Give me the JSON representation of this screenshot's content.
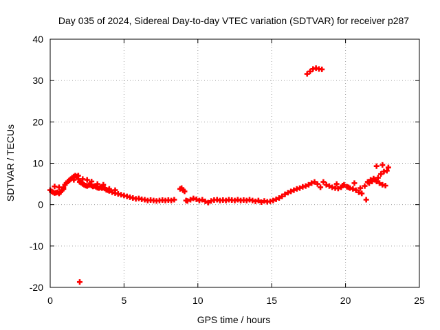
{
  "chart_data": {
    "type": "scatter",
    "title": "Day 035 of 2024, Sidereal Day-to-day VTEC variation (SDTVAR) for receiver p287",
    "xlabel": "GPS time / hours",
    "ylabel": "SDTVAR / TECUs",
    "xlim": [
      0,
      25
    ],
    "ylim": [
      -20,
      40
    ],
    "xticks": [
      0,
      5,
      10,
      15,
      20,
      25
    ],
    "yticks": [
      -20,
      -10,
      0,
      10,
      20,
      30,
      40
    ],
    "xtick_labels": [
      "0",
      "5",
      "10",
      "15",
      "20",
      "25"
    ],
    "ytick_labels": [
      "-20",
      "-10",
      "0",
      "10",
      "20",
      "30",
      "40"
    ],
    "grid": true,
    "marker": "+",
    "series": [
      {
        "name": "SDTVAR",
        "color": "#ff0000",
        "x": [
          0.0,
          0.1,
          0.2,
          0.3,
          0.4,
          0.5,
          0.6,
          0.7,
          0.8,
          0.9,
          1.0,
          1.1,
          1.2,
          1.3,
          1.4,
          1.5,
          1.6,
          1.7,
          1.8,
          1.9,
          2.0,
          2.1,
          2.2,
          2.3,
          2.4,
          2.5,
          2.6,
          2.7,
          2.8,
          2.9,
          3.0,
          3.1,
          3.2,
          3.3,
          3.4,
          3.5,
          3.6,
          3.7,
          3.8,
          3.9,
          4.0,
          4.2,
          4.4,
          4.6,
          4.8,
          5.0,
          5.2,
          5.4,
          5.6,
          5.8,
          6.0,
          6.2,
          6.4,
          6.6,
          6.8,
          7.0,
          7.2,
          7.4,
          7.6,
          7.8,
          8.0,
          8.2,
          8.4,
          8.8,
          8.9,
          9.0,
          9.1,
          9.2,
          9.3,
          9.5,
          9.7,
          9.9,
          10.1,
          10.3,
          10.5,
          10.7,
          10.9,
          11.1,
          11.3,
          11.5,
          11.7,
          11.9,
          12.1,
          12.3,
          12.5,
          12.7,
          12.9,
          13.1,
          13.3,
          13.5,
          13.7,
          13.9,
          14.1,
          14.3,
          14.5,
          14.7,
          14.9,
          15.1,
          15.3,
          15.5,
          15.7,
          15.9,
          16.1,
          16.3,
          16.5,
          16.7,
          16.9,
          17.1,
          17.3,
          17.5,
          17.7,
          17.9,
          18.1,
          18.3,
          18.5,
          18.7,
          18.9,
          19.1,
          19.3,
          19.5,
          19.7,
          19.9,
          20.1,
          20.3,
          20.5,
          20.7,
          20.9,
          21.1,
          21.3,
          21.5,
          21.7,
          21.9,
          22.1,
          22.3,
          22.5,
          22.7,
          17.4,
          17.6,
          17.8,
          18.0,
          18.2,
          18.4,
          2.0,
          21.4,
          21.6,
          21.8,
          22.0,
          22.2,
          22.4,
          22.6,
          22.8,
          0.3,
          0.6,
          0.9,
          3.2,
          3.6,
          4.0,
          4.4,
          19.4,
          19.8,
          20.2,
          20.6,
          21.0,
          22.1,
          22.5,
          22.9,
          1.6,
          1.9,
          2.2,
          2.5,
          2.8
        ],
        "y": [
          3.5,
          3.2,
          3.0,
          2.8,
          2.9,
          3.0,
          2.7,
          3.0,
          3.5,
          4.2,
          4.8,
          5.2,
          5.6,
          5.9,
          6.2,
          6.5,
          6.8,
          7.0,
          6.8,
          6.2,
          5.5,
          5.3,
          5.0,
          4.8,
          4.6,
          4.5,
          4.7,
          4.8,
          4.6,
          4.4,
          4.5,
          4.3,
          4.1,
          4.0,
          4.2,
          4.0,
          4.1,
          3.9,
          3.6,
          3.5,
          3.3,
          3.0,
          2.8,
          2.6,
          2.4,
          2.2,
          2.0,
          1.8,
          1.6,
          1.4,
          1.5,
          1.3,
          1.2,
          1.0,
          1.1,
          1.0,
          0.9,
          1.0,
          1.1,
          1.0,
          1.1,
          1.0,
          1.2,
          3.8,
          4.0,
          3.5,
          3.2,
          1.0,
          0.9,
          1.2,
          1.5,
          1.3,
          1.0,
          1.2,
          0.8,
          0.5,
          0.9,
          1.1,
          1.2,
          1.0,
          1.1,
          1.0,
          1.2,
          1.1,
          1.0,
          1.2,
          1.0,
          1.1,
          1.0,
          1.2,
          1.0,
          0.8,
          1.0,
          0.6,
          0.9,
          0.7,
          0.8,
          1.0,
          1.3,
          1.6,
          2.0,
          2.5,
          2.9,
          3.2,
          3.5,
          3.8,
          4.0,
          4.3,
          4.5,
          4.8,
          5.2,
          5.5,
          5.0,
          4.2,
          5.5,
          4.8,
          4.5,
          4.2,
          4.0,
          3.9,
          4.2,
          4.8,
          4.3,
          4.0,
          3.8,
          3.5,
          3.0,
          2.7,
          4.5,
          5.5,
          6.0,
          6.3,
          5.6,
          5.2,
          4.8,
          4.6,
          31.6,
          32.2,
          32.8,
          33.0,
          32.8,
          32.7,
          -18.7,
          1.2,
          5.2,
          5.6,
          6.0,
          6.5,
          7.4,
          8.0,
          8.2,
          4.4,
          4.2,
          3.8,
          5.0,
          4.8,
          3.8,
          3.5,
          5.0,
          4.6,
          4.2,
          5.2,
          4.0,
          9.3,
          9.6,
          9.0,
          6.0,
          7.0,
          6.2,
          6.0,
          5.6
        ]
      }
    ]
  }
}
